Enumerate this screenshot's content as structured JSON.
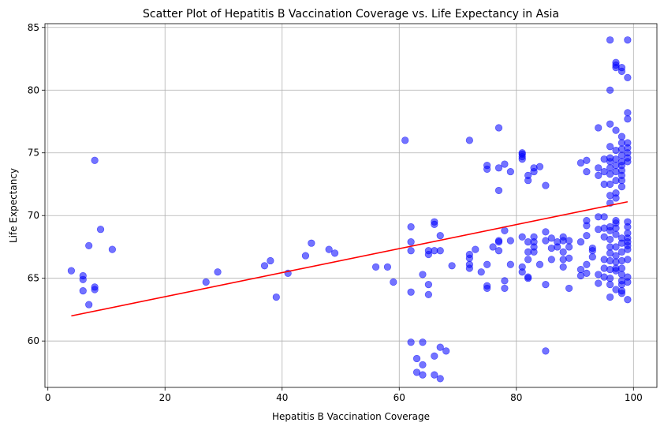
{
  "chart_data": {
    "type": "scatter",
    "title": "Scatter Plot of Hepatitis B Vaccination Coverage vs. Life Expectancy in Asia",
    "xlabel": "Hepatitis B Vaccination Coverage",
    "ylabel": "Life Expectancy",
    "xlim": [
      -0.5,
      104
    ],
    "ylim": [
      56.3,
      85.3
    ],
    "xticks": [
      0,
      20,
      40,
      60,
      80,
      100
    ],
    "yticks": [
      60,
      65,
      70,
      75,
      80,
      85
    ],
    "grid": true,
    "colors": {
      "points": "#0000ff",
      "trend": "#ff0000"
    },
    "trendline": {
      "x": [
        4,
        99
      ],
      "y": [
        62.0,
        71.1
      ]
    },
    "points": [
      [
        4,
        65.6
      ],
      [
        6,
        65.2
      ],
      [
        6,
        64.9
      ],
      [
        6,
        64.0
      ],
      [
        7,
        67.6
      ],
      [
        7,
        62.9
      ],
      [
        8,
        74.4
      ],
      [
        8,
        64.1
      ],
      [
        8,
        64.3
      ],
      [
        9,
        68.9
      ],
      [
        11,
        67.3
      ],
      [
        27,
        64.7
      ],
      [
        29,
        65.5
      ],
      [
        37,
        66.0
      ],
      [
        38,
        66.4
      ],
      [
        39,
        63.5
      ],
      [
        41,
        65.4
      ],
      [
        44,
        66.8
      ],
      [
        45,
        67.8
      ],
      [
        48,
        67.3
      ],
      [
        49,
        67.0
      ],
      [
        56,
        65.9
      ],
      [
        58,
        65.9
      ],
      [
        59,
        64.7
      ],
      [
        61,
        76.0
      ],
      [
        62,
        69.1
      ],
      [
        62,
        67.9
      ],
      [
        62,
        67.2
      ],
      [
        62,
        63.9
      ],
      [
        62,
        59.9
      ],
      [
        63,
        58.6
      ],
      [
        63,
        57.5
      ],
      [
        64,
        57.3
      ],
      [
        64,
        58.1
      ],
      [
        64,
        59.9
      ],
      [
        64,
        65.3
      ],
      [
        65,
        64.5
      ],
      [
        65,
        63.7
      ],
      [
        65,
        66.9
      ],
      [
        65,
        67.2
      ],
      [
        66,
        69.3
      ],
      [
        66,
        69.5
      ],
      [
        66,
        67.2
      ],
      [
        66,
        58.8
      ],
      [
        66,
        57.3
      ],
      [
        67,
        57.0
      ],
      [
        67,
        59.5
      ],
      [
        67,
        67.2
      ],
      [
        67,
        68.4
      ],
      [
        68,
        59.2
      ],
      [
        69,
        66.0
      ],
      [
        72,
        76.0
      ],
      [
        72,
        65.8
      ],
      [
        72,
        66.1
      ],
      [
        72,
        66.6
      ],
      [
        72,
        66.9
      ],
      [
        73,
        67.3
      ],
      [
        74,
        65.5
      ],
      [
        75,
        73.7
      ],
      [
        75,
        74.0
      ],
      [
        75,
        66.1
      ],
      [
        75,
        64.4
      ],
      [
        75,
        64.2
      ],
      [
        76,
        67.5
      ],
      [
        77,
        77.0
      ],
      [
        77,
        72.0
      ],
      [
        77,
        73.8
      ],
      [
        77,
        67.9
      ],
      [
        77,
        68.0
      ],
      [
        77,
        67.2
      ],
      [
        78,
        74.1
      ],
      [
        78,
        68.8
      ],
      [
        78,
        64.8
      ],
      [
        78,
        64.2
      ],
      [
        79,
        73.5
      ],
      [
        79,
        68.0
      ],
      [
        79,
        66.1
      ],
      [
        81,
        75.0
      ],
      [
        81,
        74.9
      ],
      [
        81,
        74.7
      ],
      [
        81,
        74.5
      ],
      [
        81,
        68.3
      ],
      [
        81,
        65.9
      ],
      [
        81,
        65.5
      ],
      [
        82,
        73.2
      ],
      [
        82,
        72.8
      ],
      [
        82,
        67.9
      ],
      [
        82,
        67.1
      ],
      [
        82,
        66.5
      ],
      [
        82,
        65.1
      ],
      [
        82,
        65.0
      ],
      [
        83,
        73.8
      ],
      [
        83,
        73.5
      ],
      [
        83,
        68.3
      ],
      [
        83,
        67.9
      ],
      [
        83,
        67.5
      ],
      [
        83,
        67.1
      ],
      [
        84,
        73.9
      ],
      [
        84,
        66.1
      ],
      [
        85,
        72.4
      ],
      [
        85,
        68.7
      ],
      [
        85,
        68.0
      ],
      [
        85,
        64.5
      ],
      [
        85,
        59.2
      ],
      [
        86,
        68.2
      ],
      [
        86,
        67.4
      ],
      [
        86,
        66.5
      ],
      [
        87,
        67.9
      ],
      [
        87,
        67.5
      ],
      [
        88,
        68.3
      ],
      [
        88,
        68.0
      ],
      [
        88,
        67.1
      ],
      [
        88,
        66.5
      ],
      [
        88,
        65.9
      ],
      [
        89,
        68.0
      ],
      [
        89,
        67.5
      ],
      [
        89,
        66.6
      ],
      [
        89,
        64.2
      ],
      [
        91,
        74.2
      ],
      [
        91,
        67.9
      ],
      [
        91,
        65.7
      ],
      [
        91,
        65.2
      ],
      [
        92,
        74.4
      ],
      [
        92,
        73.5
      ],
      [
        92,
        69.6
      ],
      [
        92,
        69.2
      ],
      [
        92,
        68.4
      ],
      [
        92,
        66.1
      ],
      [
        92,
        65.4
      ],
      [
        93,
        67.4
      ],
      [
        93,
        67.2
      ],
      [
        93,
        66.7
      ],
      [
        94,
        77.0
      ],
      [
        94,
        73.8
      ],
      [
        94,
        73.2
      ],
      [
        94,
        69.9
      ],
      [
        94,
        68.9
      ],
      [
        94,
        65.3
      ],
      [
        94,
        64.6
      ],
      [
        95,
        74.5
      ],
      [
        95,
        73.5
      ],
      [
        95,
        72.5
      ],
      [
        95,
        69.9
      ],
      [
        95,
        69.0
      ],
      [
        95,
        68.3
      ],
      [
        95,
        66.5
      ],
      [
        95,
        65.1
      ],
      [
        95,
        65.8
      ],
      [
        96,
        84.0
      ],
      [
        96,
        80.0
      ],
      [
        96,
        77.3
      ],
      [
        96,
        75.5
      ],
      [
        96,
        74.6
      ],
      [
        96,
        74.3
      ],
      [
        96,
        73.8
      ],
      [
        96,
        73.3
      ],
      [
        96,
        72.5
      ],
      [
        96,
        71.6
      ],
      [
        96,
        71.0
      ],
      [
        96,
        69.1
      ],
      [
        96,
        68.8
      ],
      [
        96,
        68.1
      ],
      [
        96,
        67.5
      ],
      [
        96,
        67.0
      ],
      [
        96,
        66.4
      ],
      [
        96,
        65.7
      ],
      [
        96,
        65.0
      ],
      [
        96,
        64.5
      ],
      [
        96,
        63.5
      ],
      [
        97,
        82.2
      ],
      [
        97,
        82.0
      ],
      [
        97,
        81.8
      ],
      [
        97,
        76.8
      ],
      [
        97,
        75.2
      ],
      [
        97,
        74.5
      ],
      [
        97,
        74.0
      ],
      [
        97,
        73.5
      ],
      [
        97,
        72.8
      ],
      [
        97,
        71.8
      ],
      [
        97,
        71.4
      ],
      [
        97,
        69.6
      ],
      [
        97,
        69.4
      ],
      [
        97,
        69.0
      ],
      [
        97,
        68.5
      ],
      [
        97,
        67.5
      ],
      [
        97,
        66.8
      ],
      [
        97,
        66.3
      ],
      [
        97,
        65.8
      ],
      [
        97,
        65.6
      ],
      [
        97,
        64.1
      ],
      [
        98,
        81.8
      ],
      [
        98,
        81.5
      ],
      [
        98,
        76.3
      ],
      [
        98,
        75.8
      ],
      [
        98,
        75.3
      ],
      [
        98,
        74.8
      ],
      [
        98,
        74.3
      ],
      [
        98,
        74.0
      ],
      [
        98,
        73.6
      ],
      [
        98,
        73.2
      ],
      [
        98,
        72.8
      ],
      [
        98,
        72.3
      ],
      [
        98,
        68.2
      ],
      [
        98,
        67.8
      ],
      [
        98,
        67.1
      ],
      [
        98,
        66.4
      ],
      [
        98,
        65.8
      ],
      [
        98,
        65.3
      ],
      [
        98,
        64.8
      ],
      [
        98,
        64.5
      ],
      [
        98,
        63.8
      ],
      [
        98,
        64.0
      ],
      [
        99,
        84.0
      ],
      [
        99,
        81.0
      ],
      [
        99,
        78.2
      ],
      [
        99,
        77.7
      ],
      [
        99,
        75.8
      ],
      [
        99,
        75.4
      ],
      [
        99,
        75.0
      ],
      [
        99,
        74.6
      ],
      [
        99,
        74.3
      ],
      [
        99,
        69.5
      ],
      [
        99,
        69.1
      ],
      [
        99,
        68.6
      ],
      [
        99,
        68.2
      ],
      [
        99,
        67.9
      ],
      [
        99,
        67.6
      ],
      [
        99,
        67.3
      ],
      [
        99,
        66.5
      ],
      [
        99,
        65.1
      ],
      [
        99,
        64.7
      ],
      [
        99,
        63.3
      ]
    ]
  }
}
